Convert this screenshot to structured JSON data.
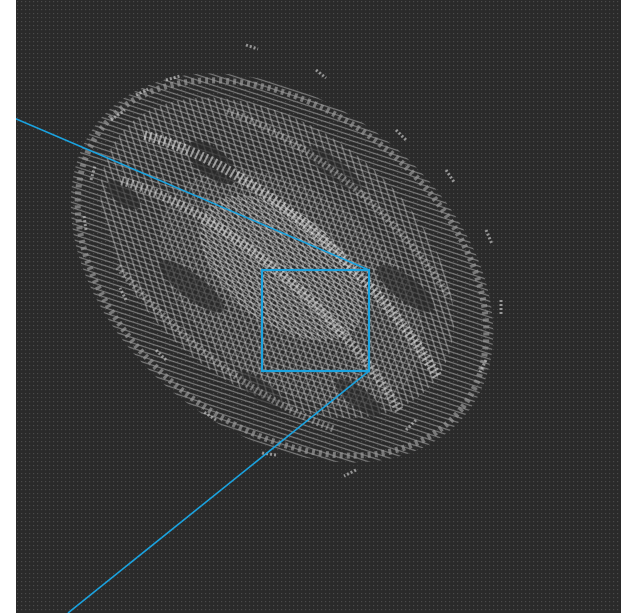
{
  "image": {
    "subject": "axial-brain-dti-glyph-slice",
    "colors": {
      "background": "#2a2a2a",
      "grid_dot": "#4a4a4a",
      "tissue_glyph": "#d6d6d6",
      "tissue_glyph_dim": "#8c8c8c",
      "zoom_box": "#1aa3e0",
      "zoom_lines": "#1aa3e0"
    }
  },
  "overlay": {
    "zoom_region_label": "",
    "connector_count": 2
  }
}
